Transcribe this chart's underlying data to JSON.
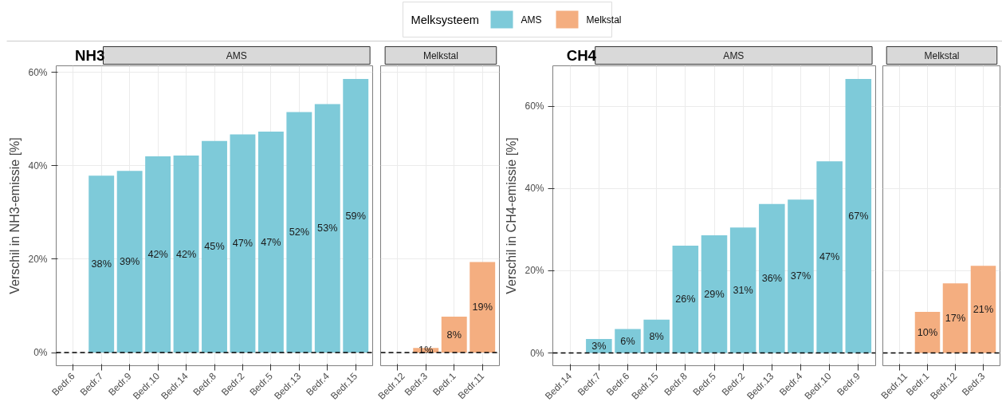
{
  "chart_data": [
    {
      "type": "bar",
      "title": "NH3",
      "ylabel": "Verschil in NH3-emissie [%]",
      "legend_title": "Melksysteem",
      "legend": "top",
      "grid": true,
      "categories": [
        "Bedr.6",
        "Bedr.7",
        "Bedr.9",
        "Bedr.10",
        "Bedr.14",
        "Bedr.8",
        "Bedr.2",
        "Bedr.5",
        "Bedr.13",
        "Bedr.4",
        "Bedr.15"
      ],
      "series": [
        {
          "name": "AMS",
          "color": "#7ecad9",
          "values": [
            null,
            37.9,
            38.9,
            42.0,
            42.2,
            45.3,
            46.7,
            47.3,
            51.5,
            53.2,
            58.6
          ],
          "value_labels": [
            null,
            "38%",
            "39%",
            "42%",
            "42%",
            "45%",
            "47%",
            "47%",
            "52%",
            "53%",
            "59%"
          ]
        }
      ],
      "ylim": [
        -2.8,
        61.4
      ],
      "yticks": [
        {
          "value": 0,
          "label": "0%"
        },
        {
          "value": 20,
          "label": "20%"
        },
        {
          "value": 40,
          "label": "40%"
        },
        {
          "value": 60,
          "label": "60%"
        }
      ],
      "ref_lines": [
        {
          "axis": "y",
          "value": 0,
          "color": "#000000",
          "line_style": "dashed"
        }
      ]
    },
    {
      "type": "bar",
      "grid": true,
      "tick_labels": "x",
      "categories": [
        "Bedr.12",
        "Bedr.3",
        "Bedr.1",
        "Bedr.11"
      ],
      "series": [
        {
          "name": "Melkstal",
          "color": "#f4ae80",
          "values": [
            null,
            1.0,
            7.7,
            19.4
          ],
          "value_labels": [
            null,
            "1%",
            "8%",
            "19%"
          ]
        }
      ],
      "ylim": [
        -2.8,
        61.4
      ],
      "yticks": [
        {
          "value": 0,
          "label": "0%"
        },
        {
          "value": 20,
          "label": "20%"
        },
        {
          "value": 40,
          "label": "40%"
        },
        {
          "value": 60,
          "label": "60%"
        }
      ],
      "ref_lines": [
        {
          "axis": "y",
          "value": 0,
          "color": "#000000",
          "line_style": "dashed"
        }
      ]
    },
    {
      "type": "bar",
      "title": "CH4",
      "ylabel": "Verschil in CH4-emissie [%]",
      "grid": true,
      "categories": [
        "Bedr.14",
        "Bedr.7",
        "Bedr.6",
        "Bedr.15",
        "Bedr.8",
        "Bedr.5",
        "Bedr.2",
        "Bedr.13",
        "Bedr.4",
        "Bedr.10",
        "Bedr.9"
      ],
      "series": [
        {
          "name": "AMS",
          "color": "#7ecad9",
          "values": [
            null,
            3.4,
            5.8,
            8.1,
            26.1,
            28.6,
            30.5,
            36.2,
            37.3,
            46.6,
            66.6
          ],
          "value_labels": [
            null,
            "3%",
            "6%",
            "8%",
            "26%",
            "29%",
            "31%",
            "36%",
            "37%",
            "47%",
            "67%"
          ]
        }
      ],
      "ylim": [
        -3.1,
        69.8
      ],
      "yticks": [
        {
          "value": 0,
          "label": "0%"
        },
        {
          "value": 20,
          "label": "20%"
        },
        {
          "value": 40,
          "label": "40%"
        },
        {
          "value": 60,
          "label": "60%"
        }
      ],
      "ref_lines": [
        {
          "axis": "y",
          "value": 0,
          "color": "#000000",
          "line_style": "dashed"
        }
      ]
    },
    {
      "type": "bar",
      "grid": true,
      "tick_labels": "x",
      "categories": [
        "Bedr.11",
        "Bedr.1",
        "Bedr.12",
        "Bedr.3"
      ],
      "series": [
        {
          "name": "Melkstal",
          "color": "#f4ae80",
          "values": [
            null,
            10.0,
            16.9,
            21.2
          ],
          "value_labels": [
            null,
            "10%",
            "17%",
            "21%"
          ]
        }
      ],
      "ylim": [
        -3.1,
        69.8
      ],
      "yticks": [
        {
          "value": 0,
          "label": "0%"
        },
        {
          "value": 20,
          "label": "20%"
        },
        {
          "value": 40,
          "label": "40%"
        },
        {
          "value": 60,
          "label": "60%"
        }
      ],
      "ref_lines": [
        {
          "axis": "y",
          "value": 0,
          "color": "#000000",
          "line_style": "dashed"
        }
      ]
    }
  ]
}
